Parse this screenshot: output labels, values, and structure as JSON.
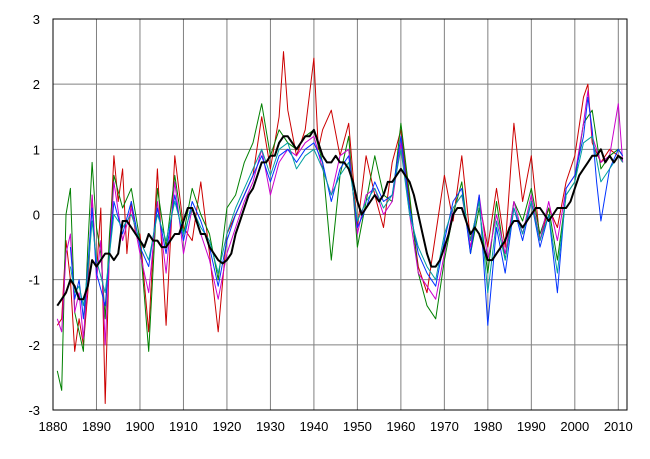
{
  "chart_data": {
    "type": "line",
    "title": "",
    "xlabel": "",
    "ylabel": "",
    "xlim": [
      1880,
      2012
    ],
    "ylim": [
      -3,
      3
    ],
    "grid": true,
    "legend": "none",
    "x_ticks": [
      "1880",
      "1890",
      "1900",
      "1910",
      "1920",
      "1930",
      "1940",
      "1950",
      "1960",
      "1970",
      "1980",
      "1990",
      "2000",
      "2010"
    ],
    "y_ticks": [
      "3",
      "2",
      "1",
      "0",
      "-1",
      "-2",
      "-3"
    ],
    "colors": {
      "grid": "#808080",
      "axis": "#000000",
      "smooth": "#000000",
      "series": [
        "#cc0000",
        "#008000",
        "#cc00cc",
        "#0033ff",
        "#00a0a0"
      ]
    },
    "series": [
      {
        "color": "#cc0000",
        "x": [
          1881,
          1882,
          1883,
          1884,
          1885,
          1886,
          1887,
          1888,
          1889,
          1890,
          1891,
          1892,
          1893,
          1894,
          1895,
          1896,
          1897,
          1898,
          1899,
          1900,
          1902,
          1904,
          1906,
          1908,
          1910,
          1912,
          1914,
          1916,
          1918,
          1920,
          1922,
          1924,
          1926,
          1928,
          1930,
          1932,
          1933,
          1934,
          1936,
          1938,
          1940,
          1941,
          1942,
          1944,
          1946,
          1948,
          1950,
          1952,
          1954,
          1956,
          1958,
          1960,
          1962,
          1964,
          1966,
          1968,
          1970,
          1972,
          1974,
          1976,
          1978,
          1980,
          1982,
          1984,
          1986,
          1988,
          1990,
          1992,
          1994,
          1996,
          1998,
          2000,
          2002,
          2003,
          2004,
          2006,
          2008,
          2010,
          2011
        ],
        "y": [
          -1.7,
          -1.6,
          -0.4,
          -1.0,
          -2.1,
          -1.6,
          -2.0,
          -1.2,
          0.3,
          -0.9,
          0.1,
          -2.9,
          -0.5,
          0.9,
          0.2,
          0.7,
          -0.6,
          0.2,
          -0.3,
          -0.3,
          -1.8,
          0.7,
          -1.7,
          0.9,
          -0.2,
          -0.4,
          0.5,
          -0.6,
          -1.8,
          -0.3,
          0.0,
          0.3,
          0.6,
          1.5,
          0.7,
          1.5,
          2.5,
          1.6,
          0.9,
          1.3,
          2.4,
          1.0,
          1.3,
          1.6,
          0.9,
          1.4,
          -0.2,
          0.9,
          0.3,
          -0.2,
          0.8,
          1.3,
          0.2,
          -0.8,
          -1.2,
          -0.3,
          0.6,
          -0.1,
          0.9,
          -0.4,
          0.2,
          -0.5,
          0.4,
          -0.5,
          1.4,
          0.2,
          0.9,
          -0.4,
          0.1,
          -0.2,
          0.5,
          0.9,
          1.8,
          2.0,
          1.1,
          0.8,
          1.0,
          0.9,
          0.8
        ]
      },
      {
        "color": "#008000",
        "x": [
          1881,
          1882,
          1883,
          1884,
          1885,
          1886,
          1887,
          1888,
          1889,
          1890,
          1891,
          1892,
          1893,
          1894,
          1896,
          1898,
          1900,
          1902,
          1904,
          1906,
          1908,
          1910,
          1912,
          1914,
          1916,
          1918,
          1920,
          1922,
          1924,
          1926,
          1928,
          1930,
          1932,
          1934,
          1936,
          1938,
          1940,
          1942,
          1944,
          1946,
          1948,
          1950,
          1952,
          1954,
          1956,
          1958,
          1960,
          1962,
          1964,
          1966,
          1968,
          1970,
          1972,
          1974,
          1976,
          1978,
          1980,
          1982,
          1984,
          1986,
          1988,
          1990,
          1992,
          1994,
          1996,
          1998,
          2000,
          2002,
          2004,
          2006,
          2008,
          2010,
          2011
        ],
        "y": [
          -2.4,
          -2.7,
          0.0,
          0.4,
          -1.5,
          -1.8,
          -2.1,
          -0.5,
          0.8,
          -0.2,
          -0.6,
          -1.6,
          -0.3,
          0.6,
          0.1,
          0.4,
          -0.4,
          -2.1,
          0.4,
          -0.5,
          0.6,
          -0.3,
          0.4,
          0.0,
          -0.3,
          -1.0,
          0.1,
          0.3,
          0.8,
          1.1,
          1.7,
          0.9,
          1.3,
          1.1,
          1.0,
          1.2,
          1.3,
          0.8,
          -0.7,
          0.6,
          1.2,
          -0.5,
          0.2,
          0.9,
          0.3,
          0.2,
          1.4,
          0.3,
          -0.9,
          -1.4,
          -1.6,
          -0.7,
          0.0,
          0.5,
          -0.6,
          0.1,
          -0.9,
          0.2,
          -0.7,
          0.2,
          -0.1,
          0.4,
          -0.3,
          0.1,
          -0.7,
          0.3,
          0.5,
          1.4,
          1.6,
          0.7,
          0.9,
          1.0,
          0.9
        ]
      },
      {
        "color": "#cc00cc",
        "x": [
          1881,
          1882,
          1883,
          1884,
          1885,
          1886,
          1887,
          1888,
          1889,
          1890,
          1891,
          1892,
          1893,
          1894,
          1896,
          1898,
          1900,
          1902,
          1904,
          1906,
          1908,
          1910,
          1912,
          1914,
          1916,
          1918,
          1920,
          1922,
          1924,
          1926,
          1928,
          1930,
          1932,
          1934,
          1936,
          1938,
          1940,
          1942,
          1944,
          1946,
          1948,
          1950,
          1952,
          1954,
          1956,
          1958,
          1960,
          1962,
          1964,
          1966,
          1968,
          1970,
          1972,
          1974,
          1976,
          1978,
          1980,
          1982,
          1984,
          1986,
          1988,
          1990,
          1992,
          1994,
          1996,
          1998,
          2000,
          2002,
          2003,
          2004,
          2006,
          2008,
          2010,
          2011
        ],
        "y": [
          -1.6,
          -1.8,
          -0.6,
          -0.3,
          -1.5,
          -1.2,
          -1.9,
          -1.0,
          0.3,
          -1.0,
          -0.4,
          -2.0,
          -0.6,
          0.5,
          -0.4,
          0.1,
          -0.6,
          -1.2,
          0.2,
          -0.9,
          0.5,
          -0.6,
          0.1,
          -0.3,
          -0.7,
          -1.3,
          -0.6,
          -0.2,
          0.2,
          0.5,
          1.0,
          0.3,
          0.8,
          1.0,
          0.9,
          1.1,
          1.2,
          0.7,
          0.3,
          0.9,
          1.0,
          -0.3,
          0.3,
          0.4,
          0.0,
          0.2,
          1.1,
          0.0,
          -0.9,
          -1.1,
          -1.3,
          -0.6,
          0.1,
          0.3,
          -0.5,
          0.3,
          -0.7,
          0.0,
          -0.6,
          0.2,
          -0.3,
          0.3,
          -0.4,
          0.2,
          -0.4,
          0.4,
          0.6,
          1.4,
          1.9,
          1.2,
          0.8,
          0.9,
          1.7,
          0.8
        ]
      },
      {
        "color": "#0033ff",
        "x": [
          1884,
          1885,
          1886,
          1887,
          1888,
          1889,
          1890,
          1892,
          1894,
          1896,
          1898,
          1900,
          1902,
          1904,
          1906,
          1908,
          1910,
          1912,
          1914,
          1916,
          1918,
          1920,
          1922,
          1924,
          1926,
          1928,
          1930,
          1932,
          1934,
          1936,
          1938,
          1940,
          1942,
          1944,
          1946,
          1948,
          1950,
          1952,
          1954,
          1956,
          1958,
          1960,
          1962,
          1964,
          1966,
          1968,
          1970,
          1972,
          1974,
          1976,
          1978,
          1980,
          1982,
          1984,
          1986,
          1988,
          1990,
          1992,
          1994,
          1996,
          1998,
          2000,
          2002,
          2003,
          2004,
          2005,
          2006,
          2008,
          2010,
          2011
        ],
        "y": [
          -0.5,
          -1.3,
          -1.0,
          -1.6,
          -0.8,
          0.1,
          -0.9,
          -1.4,
          0.2,
          -0.3,
          0.2,
          -0.5,
          -0.8,
          0.1,
          -0.6,
          0.3,
          -0.4,
          0.2,
          -0.1,
          -0.5,
          -1.1,
          -0.4,
          0.0,
          0.3,
          0.6,
          0.9,
          0.5,
          0.9,
          1.0,
          0.8,
          1.0,
          1.1,
          0.8,
          0.2,
          0.7,
          0.9,
          -0.2,
          0.1,
          0.5,
          0.2,
          0.3,
          1.2,
          0.1,
          -0.6,
          -0.9,
          -1.1,
          -0.4,
          0.2,
          0.4,
          -0.6,
          0.3,
          -1.7,
          -0.2,
          -0.9,
          0.1,
          -0.4,
          0.2,
          -0.5,
          0.0,
          -1.2,
          0.4,
          0.6,
          1.2,
          1.8,
          1.3,
          0.5,
          -0.1,
          0.7,
          1.0,
          0.9
        ]
      },
      {
        "color": "#00a0a0",
        "x": [
          1884,
          1885,
          1886,
          1887,
          1888,
          1889,
          1890,
          1892,
          1894,
          1896,
          1898,
          1900,
          1902,
          1904,
          1906,
          1908,
          1910,
          1912,
          1914,
          1916,
          1918,
          1920,
          1922,
          1924,
          1926,
          1928,
          1930,
          1932,
          1934,
          1936,
          1938,
          1940,
          1942,
          1944,
          1946,
          1948,
          1950,
          1952,
          1954,
          1956,
          1958,
          1960,
          1962,
          1964,
          1966,
          1968,
          1970,
          1972,
          1974,
          1976,
          1978,
          1980,
          1982,
          1984,
          1986,
          1988,
          1990,
          1992,
          1994,
          1996,
          1998,
          2000,
          2002,
          2004,
          2006,
          2008,
          2010,
          2011
        ],
        "y": [
          -0.8,
          -1.2,
          -1.1,
          -1.4,
          -0.9,
          -0.1,
          -0.7,
          -1.2,
          0.0,
          -0.2,
          0.0,
          -0.4,
          -0.7,
          0.0,
          -0.4,
          0.2,
          -0.3,
          0.1,
          -0.2,
          -0.4,
          -0.9,
          -0.3,
          0.1,
          0.4,
          0.7,
          1.0,
          0.6,
          1.0,
          1.1,
          0.7,
          0.9,
          1.0,
          0.7,
          0.3,
          0.6,
          0.8,
          -0.1,
          0.2,
          0.4,
          0.1,
          0.3,
          1.0,
          0.0,
          -0.5,
          -0.8,
          -1.0,
          -0.3,
          0.1,
          0.3,
          -0.4,
          0.2,
          -1.2,
          -0.1,
          -0.7,
          0.1,
          -0.3,
          0.2,
          -0.4,
          0.0,
          -0.9,
          0.3,
          0.5,
          1.1,
          1.2,
          0.5,
          0.7,
          0.9,
          0.8
        ]
      },
      {
        "color": "#000000",
        "smooth": true,
        "x": [
          1881,
          1882,
          1883,
          1884,
          1885,
          1886,
          1887,
          1888,
          1889,
          1890,
          1891,
          1892,
          1893,
          1894,
          1895,
          1896,
          1897,
          1898,
          1899,
          1900,
          1901,
          1902,
          1903,
          1904,
          1905,
          1906,
          1907,
          1908,
          1909,
          1910,
          1911,
          1912,
          1913,
          1914,
          1915,
          1916,
          1917,
          1918,
          1919,
          1920,
          1921,
          1922,
          1923,
          1924,
          1925,
          1926,
          1927,
          1928,
          1929,
          1930,
          1931,
          1932,
          1933,
          1934,
          1935,
          1936,
          1937,
          1938,
          1939,
          1940,
          1941,
          1942,
          1943,
          1944,
          1945,
          1946,
          1947,
          1948,
          1949,
          1950,
          1951,
          1952,
          1953,
          1954,
          1955,
          1956,
          1957,
          1958,
          1959,
          1960,
          1961,
          1962,
          1963,
          1964,
          1965,
          1966,
          1967,
          1968,
          1969,
          1970,
          1971,
          1972,
          1973,
          1974,
          1975,
          1976,
          1977,
          1978,
          1979,
          1980,
          1981,
          1982,
          1983,
          1984,
          1985,
          1986,
          1987,
          1988,
          1989,
          1990,
          1991,
          1992,
          1993,
          1994,
          1995,
          1996,
          1997,
          1998,
          1999,
          2000,
          2001,
          2002,
          2003,
          2004,
          2005,
          2006,
          2007,
          2008,
          2009,
          2010,
          2011
        ],
        "y": [
          -1.4,
          -1.3,
          -1.2,
          -1.0,
          -1.1,
          -1.3,
          -1.3,
          -1.1,
          -0.7,
          -0.8,
          -0.7,
          -0.6,
          -0.6,
          -0.7,
          -0.6,
          -0.1,
          -0.1,
          -0.2,
          -0.3,
          -0.4,
          -0.5,
          -0.3,
          -0.4,
          -0.4,
          -0.5,
          -0.5,
          -0.4,
          -0.3,
          -0.3,
          -0.1,
          0.1,
          0.1,
          -0.1,
          -0.3,
          -0.3,
          -0.5,
          -0.6,
          -0.7,
          -0.75,
          -0.7,
          -0.6,
          -0.3,
          -0.1,
          0.1,
          0.3,
          0.4,
          0.6,
          0.8,
          0.8,
          0.9,
          0.9,
          1.1,
          1.2,
          1.2,
          1.1,
          1.0,
          1.1,
          1.2,
          1.2,
          1.3,
          1.1,
          0.9,
          0.8,
          0.8,
          0.9,
          0.8,
          0.8,
          0.7,
          0.5,
          0.2,
          0.0,
          0.1,
          0.2,
          0.3,
          0.2,
          0.3,
          0.5,
          0.5,
          0.6,
          0.7,
          0.6,
          0.5,
          0.3,
          0.0,
          -0.3,
          -0.6,
          -0.8,
          -0.8,
          -0.7,
          -0.5,
          -0.3,
          0.0,
          0.1,
          0.1,
          -0.1,
          -0.3,
          -0.2,
          -0.3,
          -0.5,
          -0.7,
          -0.7,
          -0.6,
          -0.5,
          -0.4,
          -0.2,
          -0.1,
          -0.1,
          -0.2,
          -0.1,
          0.0,
          0.1,
          0.1,
          0.0,
          -0.1,
          0.0,
          0.1,
          0.1,
          0.1,
          0.2,
          0.4,
          0.6,
          0.7,
          0.8,
          0.9,
          0.9,
          1.0,
          0.8,
          0.9,
          0.8,
          0.9,
          0.85
        ]
      }
    ]
  }
}
